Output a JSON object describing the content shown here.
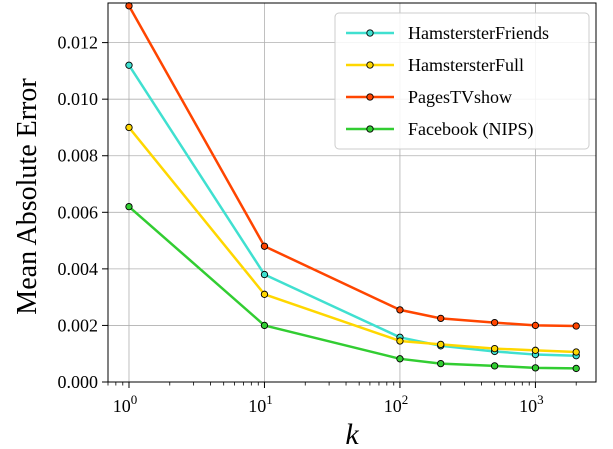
{
  "chart_data": {
    "type": "line",
    "xlabel": "k",
    "ylabel": "Mean Absolute Error",
    "x_scale": "log",
    "xlim": [
      0.7,
      2800
    ],
    "ylim": [
      0,
      0.0134
    ],
    "grid": true,
    "legend_position": "top-right",
    "x_ticks": [
      {
        "value": 1,
        "base": "10",
        "exp": "0"
      },
      {
        "value": 10,
        "base": "10",
        "exp": "1"
      },
      {
        "value": 100,
        "base": "10",
        "exp": "2"
      },
      {
        "value": 1000,
        "base": "10",
        "exp": "3"
      }
    ],
    "y_ticks": [
      {
        "value": 0.0,
        "label": "0.000"
      },
      {
        "value": 0.002,
        "label": "0.002"
      },
      {
        "value": 0.004,
        "label": "0.004"
      },
      {
        "value": 0.006,
        "label": "0.006"
      },
      {
        "value": 0.008,
        "label": "0.008"
      },
      {
        "value": 0.01,
        "label": "0.010"
      },
      {
        "value": 0.012,
        "label": "0.012"
      }
    ],
    "x": [
      1,
      10,
      100,
      200,
      500,
      1000,
      2000
    ],
    "series": [
      {
        "name": "HamstersterFriends",
        "color": "#40e0d0",
        "values": [
          0.0112,
          0.0038,
          0.00158,
          0.00128,
          0.00108,
          0.00097,
          0.00093
        ]
      },
      {
        "name": "HamstersterFull",
        "color": "#ffd700",
        "values": [
          0.009,
          0.0031,
          0.00145,
          0.00133,
          0.00118,
          0.00112,
          0.00106
        ]
      },
      {
        "name": "PagesTVshow",
        "color": "#ff4500",
        "values": [
          0.0133,
          0.0048,
          0.00255,
          0.00225,
          0.0021,
          0.002,
          0.00198
        ]
      },
      {
        "name": "Facebook (NIPS)",
        "color": "#32cd32",
        "values": [
          0.0062,
          0.002,
          0.00082,
          0.00065,
          0.00057,
          0.0005,
          0.00048
        ]
      }
    ]
  }
}
